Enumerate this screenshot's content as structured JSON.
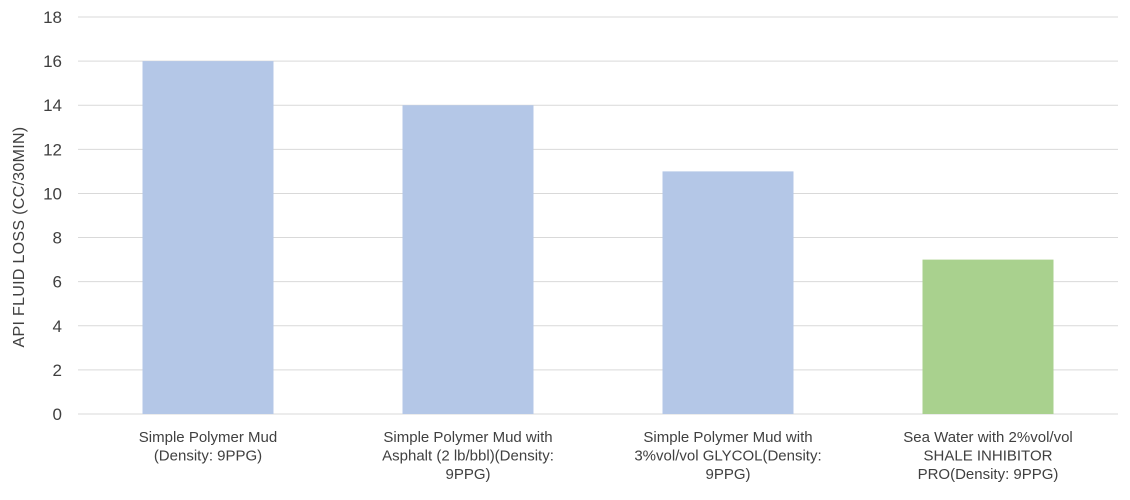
{
  "chart_data": {
    "type": "bar",
    "title": "",
    "xlabel": "",
    "ylabel": "API FLUID LOSS (CC/30MIN)",
    "ylim": [
      0,
      18
    ],
    "yticks": [
      0,
      2,
      4,
      6,
      8,
      10,
      12,
      14,
      16,
      18
    ],
    "grid": true,
    "legend": "none",
    "categories": [
      [
        "Simple Polymer Mud",
        "(Density: 9PPG)"
      ],
      [
        "Simple Polymer Mud with",
        "Asphalt (2 lb/bbl)(Density:",
        "9PPG)"
      ],
      [
        "Simple Polymer Mud with",
        "3%vol/vol GLYCOL(Density:",
        "9PPG)"
      ],
      [
        "Sea Water with 2%vol/vol",
        "SHALE INHIBITOR",
        "PRO(Density: 9PPG)"
      ]
    ],
    "values": [
      16,
      14,
      11,
      7
    ],
    "colors": [
      "#b4c7e7",
      "#b4c7e7",
      "#b4c7e7",
      "#a9d18e"
    ],
    "gridline_color": "#d9d9d9",
    "text_color": "#404040"
  }
}
